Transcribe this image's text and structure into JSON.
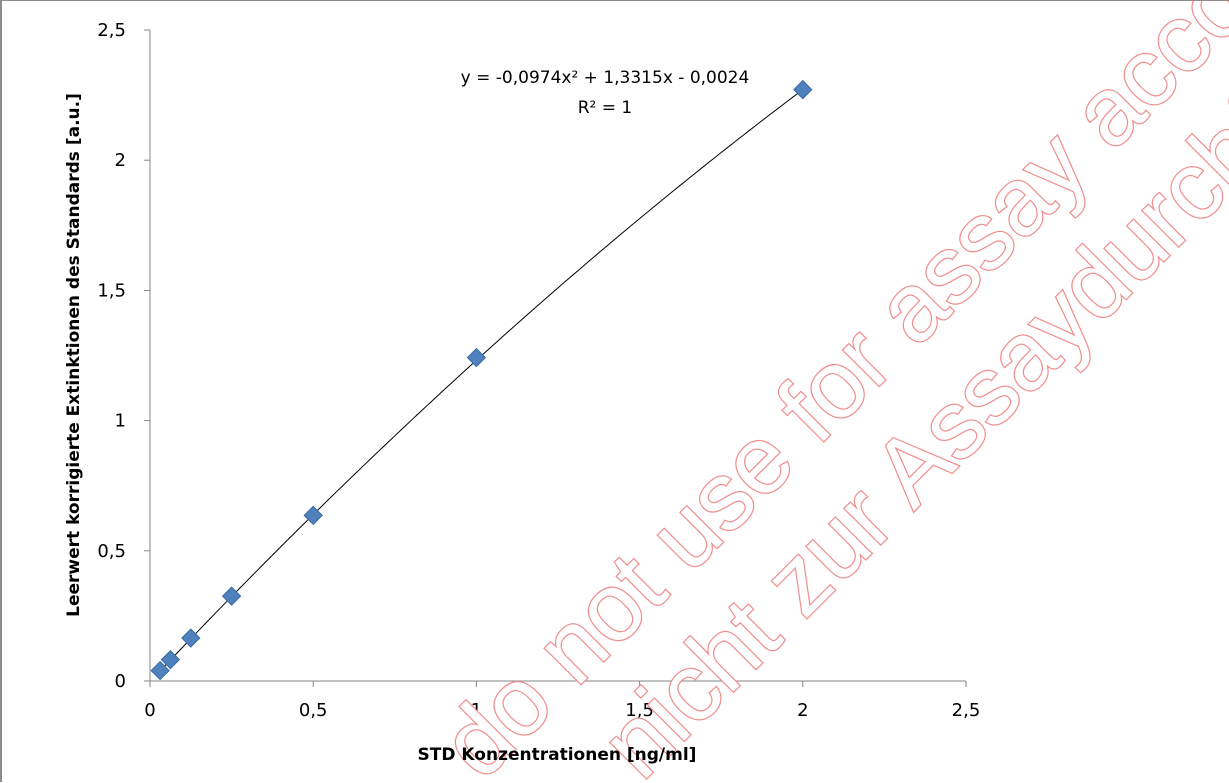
{
  "chart_data": {
    "type": "scatter",
    "xlabel": "STD Konzentrationen  [ng/ml]",
    "ylabel": "Leerwert korrigierte Extinktionen des Standards [a.u.]",
    "xlim": [
      0,
      2.5
    ],
    "ylim": [
      0,
      2.5
    ],
    "x_ticks": [
      "0",
      "0,5",
      "1",
      "1,5",
      "2",
      "2,5"
    ],
    "y_ticks": [
      "0",
      "0,5",
      "1",
      "1,5",
      "2",
      "2,5"
    ],
    "grid": false,
    "series": [
      {
        "marker": "diamond",
        "color": "#4f81bd",
        "points": [
          {
            "x": 0.031,
            "y": 0.04
          },
          {
            "x": 0.0625,
            "y": 0.082
          },
          {
            "x": 0.125,
            "y": 0.165
          },
          {
            "x": 0.25,
            "y": 0.326
          },
          {
            "x": 0.5,
            "y": 0.636
          },
          {
            "x": 1.0,
            "y": 1.242
          },
          {
            "x": 2.0,
            "y": 2.271
          }
        ]
      }
    ],
    "trendline": {
      "type": "polynomial",
      "coefficients": [
        -0.0974,
        1.3315,
        -0.0024
      ],
      "x_range": [
        0.031,
        2.0
      ],
      "color": "#000000",
      "equation_text": "y = -0,0974x² + 1,3315x - 0,0024",
      "r2_text": "R² = 1"
    }
  },
  "watermark": {
    "line1": "do not use for assay accomplishment",
    "line2": "nicht zur Assaydurchführung benutzen",
    "color": "#f08a8a"
  }
}
